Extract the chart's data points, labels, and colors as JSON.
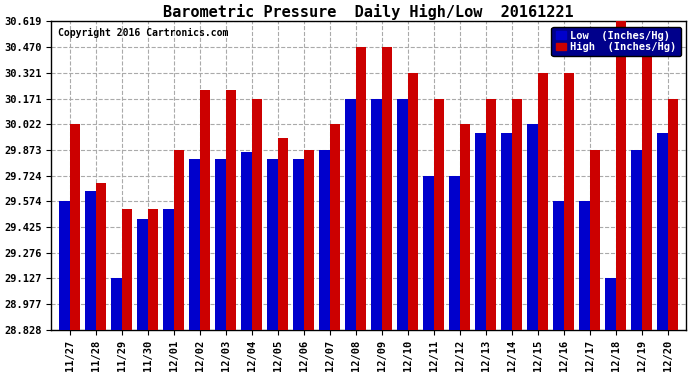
{
  "title": "Barometric Pressure  Daily High/Low  20161221",
  "copyright": "Copyright 2016 Cartronics.com",
  "categories": [
    "11/27",
    "11/28",
    "11/29",
    "11/30",
    "12/01",
    "12/02",
    "12/03",
    "12/04",
    "12/05",
    "12/06",
    "12/07",
    "12/08",
    "12/09",
    "12/10",
    "12/11",
    "12/12",
    "12/13",
    "12/14",
    "12/15",
    "12/16",
    "12/17",
    "12/18",
    "12/19",
    "12/20"
  ],
  "low_values": [
    29.574,
    29.632,
    29.127,
    29.474,
    29.53,
    29.82,
    29.82,
    29.86,
    29.82,
    29.82,
    29.873,
    30.171,
    30.171,
    30.171,
    29.724,
    29.724,
    29.97,
    29.97,
    30.022,
    29.574,
    29.574,
    29.127,
    29.873,
    29.97
  ],
  "high_values": [
    30.022,
    29.68,
    29.53,
    29.53,
    29.873,
    30.222,
    30.222,
    30.171,
    29.94,
    29.873,
    30.022,
    30.47,
    30.47,
    30.321,
    30.171,
    30.022,
    30.171,
    30.171,
    30.321,
    30.321,
    29.873,
    30.619,
    30.47,
    30.171
  ],
  "yticks": [
    28.828,
    28.977,
    29.127,
    29.276,
    29.425,
    29.574,
    29.724,
    29.873,
    30.022,
    30.171,
    30.321,
    30.47,
    30.619
  ],
  "ymin": 28.828,
  "ymax": 30.619,
  "low_color": "#0000cc",
  "high_color": "#cc0000",
  "bg_color": "#ffffff",
  "plot_bg_color": "#ffffff",
  "grid_color": "#aaaaaa",
  "legend_low_label": "Low  (Inches/Hg)",
  "legend_high_label": "High  (Inches/Hg)",
  "title_fontsize": 11,
  "copyright_fontsize": 7,
  "tick_fontsize": 7.5,
  "bar_width": 0.4
}
